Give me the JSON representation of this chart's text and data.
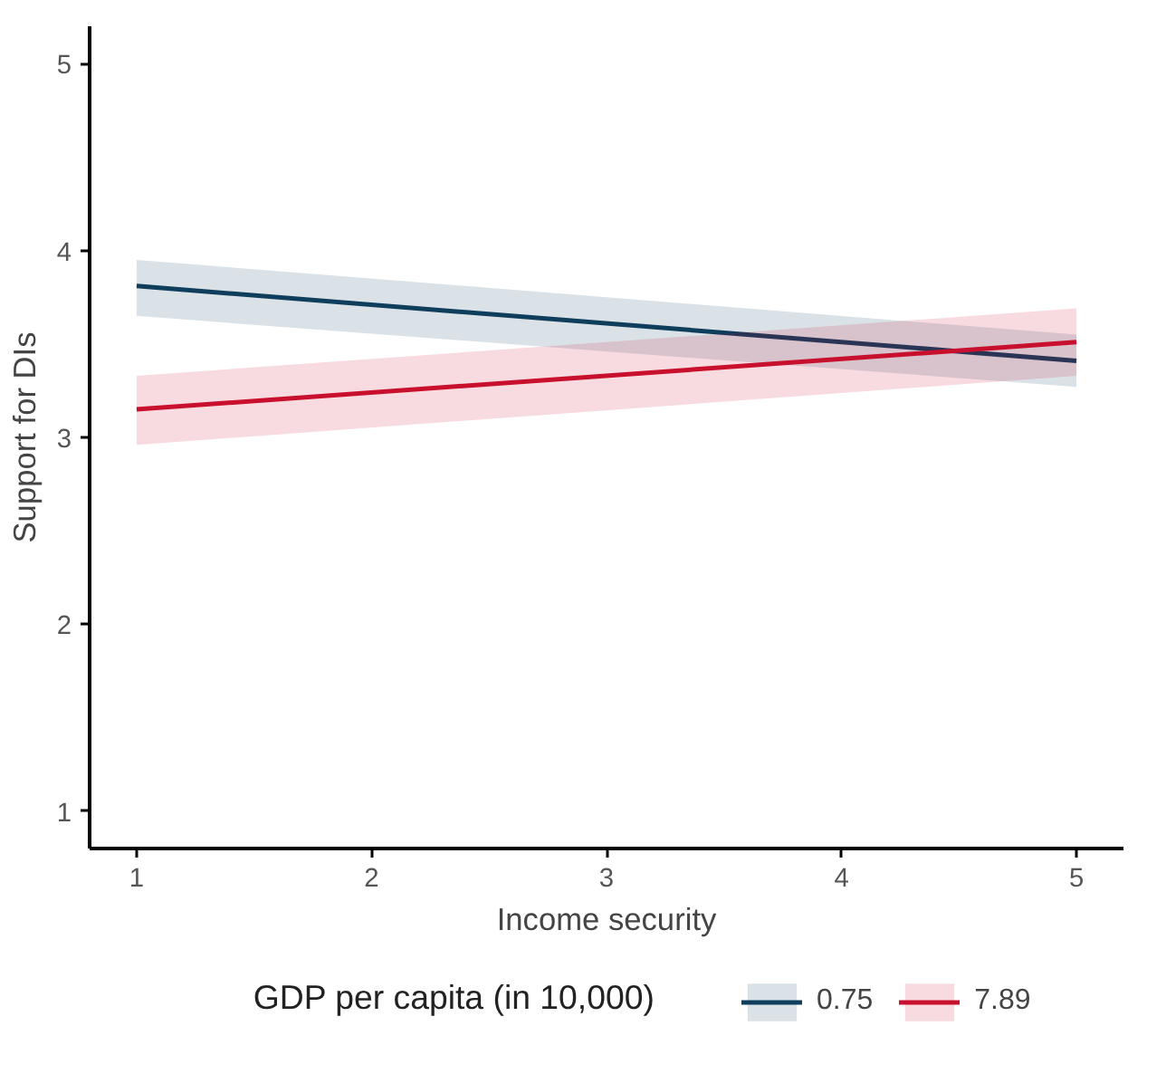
{
  "chart_data": {
    "type": "line",
    "xlabel": "Income security",
    "ylabel": "Support for DIs",
    "legend_title": "GDP per capita (in 10,000)",
    "x": [
      1,
      5
    ],
    "xlim": [
      0.8,
      5.2
    ],
    "ylim": [
      0.8,
      5.2
    ],
    "xticks": [
      1,
      2,
      3,
      4,
      5
    ],
    "yticks": [
      1,
      2,
      3,
      4,
      5
    ],
    "series": [
      {
        "name": "0.75",
        "color": "#0f3d5c",
        "values": [
          3.81,
          3.41
        ],
        "lower": [
          3.65,
          3.27
        ],
        "upper": [
          3.95,
          3.55
        ]
      },
      {
        "name": "7.89",
        "color": "#c8102e",
        "values": [
          3.15,
          3.51
        ],
        "lower": [
          2.96,
          3.33
        ],
        "upper": [
          3.33,
          3.69
        ]
      }
    ],
    "grid": false,
    "legend": "bottom",
    "marker": "none",
    "line_style": "solid"
  }
}
